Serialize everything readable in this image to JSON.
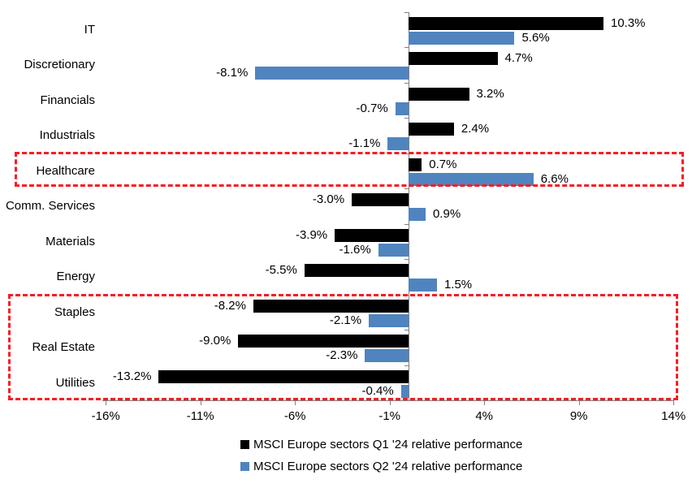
{
  "chart_data": {
    "type": "bar",
    "orientation": "horizontal",
    "title": "",
    "xlabel": "",
    "ylabel": "",
    "categories": [
      "IT",
      "Discretionary",
      "Financials",
      "Industrials",
      "Healthcare",
      "Comm. Services",
      "Materials",
      "Energy",
      "Staples",
      "Real Estate",
      "Utilities"
    ],
    "series": [
      {
        "name": "MSCI Europe sectors Q1 '24 relative performance",
        "color": "#000000",
        "values": [
          10.3,
          4.7,
          3.2,
          2.4,
          0.7,
          -3.0,
          -3.9,
          -5.5,
          -8.2,
          -9.0,
          -13.2
        ]
      },
      {
        "name": "MSCI Europe sectors Q2 '24 relative performance",
        "color": "#4f84bf",
        "values": [
          5.6,
          -8.1,
          -0.7,
          -1.1,
          6.6,
          0.9,
          -1.6,
          1.5,
          -2.1,
          -2.3,
          -0.4
        ]
      }
    ],
    "data_label_suffix": "%",
    "x_ticks": [
      -16,
      -11,
      -6,
      -1,
      4,
      9,
      14
    ],
    "x_tick_suffix": "%",
    "xlim": [
      -16.2,
      14.1
    ],
    "grid": false,
    "legend_position": "bottom",
    "axis_color": "#808080",
    "highlight_color": "#f81c22",
    "highlight_boxes": [
      {
        "categories": [
          "Healthcare"
        ]
      },
      {
        "categories": [
          "Staples",
          "Real Estate",
          "Utilities"
        ]
      }
    ]
  }
}
